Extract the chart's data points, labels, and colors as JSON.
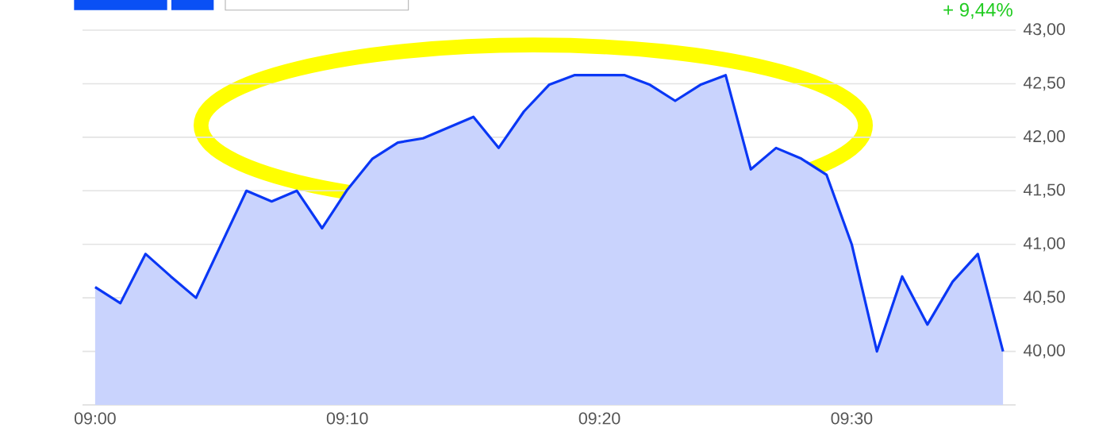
{
  "chart_data": {
    "type": "area",
    "annotations": [
      "+ 9,44%"
    ],
    "categories": [
      "09:00",
      null,
      null,
      null,
      null,
      null,
      null,
      null,
      null,
      null,
      "09:10",
      null,
      null,
      null,
      null,
      null,
      null,
      null,
      null,
      null,
      "09:20",
      null,
      null,
      null,
      null,
      null,
      null,
      null,
      null,
      null,
      "09:30",
      null,
      null,
      null,
      null,
      null,
      null
    ],
    "ylim": [
      39.5,
      43
    ],
    "yticks": [
      {
        "value": 40,
        "label": "40,00"
      },
      {
        "value": 40.5,
        "label": "40,50"
      },
      {
        "value": 41,
        "label": "41,00"
      },
      {
        "value": 41.5,
        "label": "41,50"
      },
      {
        "value": 42,
        "label": "42,00"
      },
      {
        "value": 42.5,
        "label": "42,50"
      },
      {
        "value": 43,
        "label": "43,00"
      }
    ],
    "grid": "y",
    "series": [
      {
        "color": "#0a37f5",
        "values": [
          40.6,
          40.45,
          40.91,
          40.7,
          40.5,
          41.0,
          41.5,
          41.4,
          41.5,
          41.15,
          41.51,
          41.8,
          41.95,
          41.99,
          42.09,
          42.19,
          41.9,
          42.24,
          42.49,
          42.58,
          42.58,
          42.58,
          42.49,
          42.34,
          42.49,
          42.58,
          41.7,
          41.9,
          41.8,
          41.65,
          41.0,
          40.0,
          40.7,
          40.25,
          40.65,
          40.91,
          40.0
        ]
      }
    ]
  }
}
